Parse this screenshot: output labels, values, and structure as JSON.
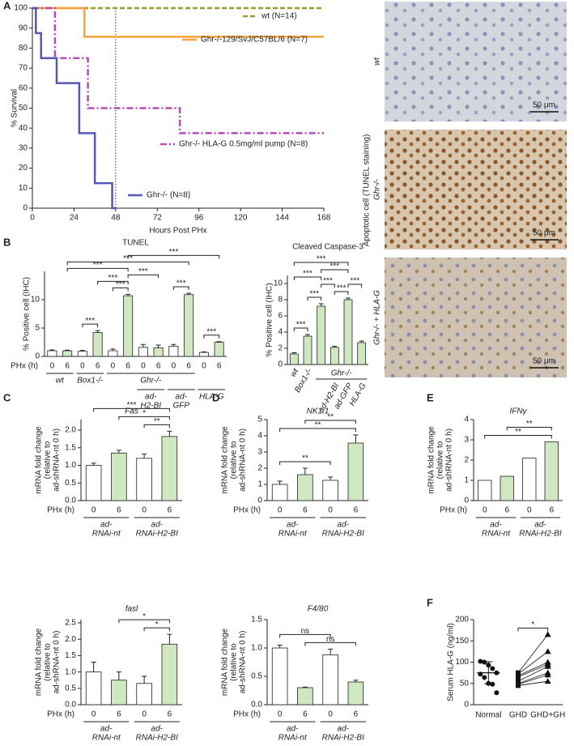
{
  "chart_data": [
    {
      "type": "survival",
      "panel": "A",
      "ylabel": [
        "% Survival"
      ],
      "xlabel": "Hours Post PHx",
      "xlim": [
        0,
        168
      ],
      "ylim": [
        0,
        100
      ],
      "xticks": [
        0,
        24,
        48,
        72,
        96,
        120,
        144,
        168
      ],
      "yticks": [
        0,
        10,
        20,
        30,
        40,
        50,
        60,
        70,
        80,
        90,
        100
      ],
      "vline": 48,
      "series": [
        {
          "name": "wt (N=14)",
          "color": "#a09a2c",
          "dash": "dashed",
          "x": [
            0,
            168
          ],
          "values": [
            100,
            100
          ]
        },
        {
          "name": "Ghr-/-129/SvJ/C57BL/6 (N=7)",
          "color": "#f5a33a",
          "dash": "solid",
          "x": [
            0,
            30,
            30,
            168
          ],
          "values": [
            100,
            100,
            85.7,
            85.7
          ]
        },
        {
          "name": "Ghr-/- HLA-G 0.5mg/ml pump (N=8)",
          "color": "#b84bb8",
          "dash": "dashdot",
          "x": [
            0,
            13,
            13,
            32,
            32,
            85,
            85,
            168
          ],
          "values": [
            100,
            100,
            75,
            75,
            50,
            50,
            37.5,
            37.5
          ]
        },
        {
          "name": "Ghr-/- (N=8)",
          "color": "#5558b5",
          "dash": "solid",
          "x": [
            0,
            2,
            2,
            5,
            5,
            14,
            14,
            27,
            27,
            36,
            36,
            46,
            46,
            48
          ],
          "values": [
            100,
            100,
            87.5,
            87.5,
            75,
            75,
            62.5,
            62.5,
            37.5,
            37.5,
            12.5,
            12.5,
            0,
            0
          ]
        }
      ]
    },
    {
      "type": "bar",
      "panel": "B",
      "title": "TUNEL",
      "ylabel": [
        "% Positive cell (IHC)"
      ],
      "xlabel": "PHx (h)",
      "categories": [
        "0",
        "6",
        "0",
        "6",
        "0",
        "6",
        "0",
        "6",
        "0",
        "6",
        "0",
        "6"
      ],
      "values": [
        1.0,
        1.0,
        0.9,
        4.2,
        1.0,
        10.7,
        1.6,
        1.5,
        1.8,
        10.9,
        0.7,
        2.5
      ],
      "errors": [
        0.15,
        0.1,
        0.15,
        0.35,
        0.3,
        0.25,
        0.5,
        0.5,
        0.3,
        0.25,
        0.1,
        0.1
      ],
      "colors": [
        "#ffffff",
        "#cfe8c2",
        "#ffffff",
        "#cfe8c2",
        "#ffffff",
        "#cfe8c2",
        "#ffffff",
        "#cfe8c2",
        "#ffffff",
        "#cfe8c2",
        "#ffffff",
        "#cfe8c2"
      ],
      "ylim": [
        0,
        15
      ],
      "yticks": [
        0,
        5,
        10
      ],
      "groups": [
        {
          "label": [
            "wt"
          ],
          "span": [
            0,
            1
          ]
        },
        {
          "label": [
            "Box1-/-"
          ],
          "span": [
            2,
            3
          ]
        },
        {
          "label": [
            "Ghr-/-"
          ],
          "span": [
            4,
            9
          ]
        }
      ],
      "subgroups": [
        {
          "label": [
            "ad-",
            "H2-BI"
          ],
          "span": [
            6,
            7
          ]
        },
        {
          "label": [
            "ad-",
            "GFP"
          ],
          "span": [
            8,
            9
          ]
        },
        {
          "label": [
            "HLA-G"
          ],
          "span": [
            10,
            11
          ]
        }
      ],
      "brackets": [
        {
          "span": [
            2,
            3
          ],
          "label": "***"
        },
        {
          "span": [
            10,
            11
          ],
          "label": "***"
        },
        {
          "span": [
            4,
            5
          ],
          "label": "***"
        },
        {
          "span": [
            8,
            9
          ],
          "label": "***"
        },
        {
          "span": [
            3,
            5
          ],
          "label": "***"
        },
        {
          "span": [
            5,
            7
          ],
          "label": "***"
        },
        {
          "span": [
            1,
            5
          ],
          "label": "***"
        },
        {
          "span": [
            1,
            9
          ],
          "label": "***"
        },
        {
          "span": [
            5,
            11
          ],
          "label": "***"
        }
      ]
    },
    {
      "type": "bar",
      "title": "Cleaved Caspase-3",
      "ylabel": [
        "% Positive cell (IHC)"
      ],
      "categories": [
        "wt",
        "Box1-/-",
        null,
        "ad-H2-BI",
        "ad-GFP",
        "HLA-G"
      ],
      "values": [
        1.3,
        3.5,
        7.2,
        2.1,
        8.0,
        2.7
      ],
      "errors": [
        0.15,
        0.2,
        0.3,
        0.15,
        0.2,
        0.2
      ],
      "color": "#cfe8c2",
      "ylim": [
        0,
        11
      ],
      "yticks": [
        0,
        2,
        4,
        6,
        8,
        10
      ],
      "groups": [
        {
          "label": [
            "Ghr-/-"
          ],
          "span": [
            2,
            5
          ]
        }
      ],
      "brackets": [
        {
          "span": [
            0,
            1
          ],
          "label": "***"
        },
        {
          "span": [
            1,
            2
          ],
          "label": "***"
        },
        {
          "span": [
            3,
            4
          ],
          "label": "***"
        },
        {
          "span": [
            2,
            3
          ],
          "label": "***"
        },
        {
          "span": [
            4,
            5
          ],
          "label": "***"
        },
        {
          "span": [
            0,
            2
          ],
          "label": "***"
        },
        {
          "span": [
            2,
            4
          ],
          "label": "***"
        },
        {
          "span": [
            0,
            4
          ],
          "label": "***"
        }
      ]
    },
    {
      "type": "bar",
      "panel": "C",
      "title": "Fas",
      "ylabel": [
        "mRNA fold change",
        "(relative to",
        "ad-shRNA-nt 0 h)"
      ],
      "xlabel": "PHx (h)",
      "categories": [
        "0",
        "6",
        "0",
        "6"
      ],
      "values": [
        1.0,
        1.35,
        1.2,
        1.82
      ],
      "errors": [
        0.06,
        0.08,
        0.12,
        0.15
      ],
      "colors": [
        "#ffffff",
        "#cfe8c2",
        "#ffffff",
        "#cfe8c2"
      ],
      "ylim": [
        0,
        2.3
      ],
      "yticks": [
        {
          "value": 0,
          "label": "0.0"
        },
        {
          "value": 0.5,
          "label": "0.5"
        },
        {
          "value": 1,
          "label": "1.0"
        },
        {
          "value": 1.5,
          "label": "1.5"
        },
        {
          "value": 2,
          "label": "2.0"
        }
      ],
      "groups": [
        {
          "label": [
            "ad-",
            "RNAi-nt"
          ],
          "span": [
            0,
            1
          ]
        },
        {
          "label": [
            "ad-",
            "RNAi-H2-BI"
          ],
          "span": [
            2,
            3
          ]
        }
      ],
      "brackets": [
        {
          "span": [
            2,
            3
          ],
          "label": "**"
        },
        {
          "span": [
            1,
            3
          ],
          "label": "*"
        },
        {
          "span": [
            0,
            3
          ],
          "label": "***"
        }
      ]
    },
    {
      "type": "bar",
      "title": "fasl",
      "ylabel": [
        "mRNA fold change",
        "(relative to",
        "ad-shRNA-nt 0 h)"
      ],
      "xlabel": "PHx (h)",
      "categories": [
        "0",
        "6",
        "0",
        "6"
      ],
      "values": [
        1.0,
        0.75,
        0.65,
        1.85
      ],
      "errors": [
        0.3,
        0.25,
        0.22,
        0.3
      ],
      "colors": [
        "#ffffff",
        "#cfe8c2",
        "#ffffff",
        "#cfe8c2"
      ],
      "ylim": [
        0,
        2.6
      ],
      "yticks": [
        {
          "value": 0,
          "label": "0.0"
        },
        {
          "value": 0.5,
          "label": "0.5"
        },
        {
          "value": 1,
          "label": "1.0"
        },
        {
          "value": 1.5,
          "label": "1.5"
        },
        {
          "value": 2,
          "label": "2.0"
        },
        {
          "value": 2.5,
          "label": "2.5"
        }
      ],
      "groups": [
        {
          "label": [
            "ad-",
            "RNAi-nt"
          ],
          "span": [
            0,
            1
          ]
        },
        {
          "label": [
            "ad-",
            "RNAi-H2-BI"
          ],
          "span": [
            2,
            3
          ]
        }
      ],
      "brackets": [
        {
          "span": [
            2,
            3
          ],
          "label": "*"
        },
        {
          "span": [
            1,
            3
          ],
          "label": "*"
        }
      ]
    },
    {
      "type": "bar",
      "panel": "D",
      "title": "NK1.1",
      "ylabel": [
        "mRNA fold change",
        "(relative to",
        "ad-shRNA-nt 0 h)"
      ],
      "xlabel": "PHx (h)",
      "categories": [
        "0",
        "6",
        "0",
        "6"
      ],
      "values": [
        1.0,
        1.6,
        1.25,
        3.55
      ],
      "errors": [
        0.2,
        0.4,
        0.2,
        0.5
      ],
      "colors": [
        "#ffffff",
        "#cfe8c2",
        "#ffffff",
        "#cfe8c2"
      ],
      "ylim": [
        0,
        5
      ],
      "yticks": [
        0,
        1,
        2,
        3,
        4,
        5
      ],
      "groups": [
        {
          "label": [
            "ad-",
            "RNAi-nt"
          ],
          "span": [
            0,
            1
          ]
        },
        {
          "label": [
            "ad-",
            "RNAi-H2-BI"
          ],
          "span": [
            2,
            3
          ]
        }
      ],
      "brackets": [
        {
          "span": [
            0,
            2
          ],
          "label": "**"
        },
        {
          "span": [
            0,
            3
          ],
          "label": "**"
        },
        {
          "span": [
            1,
            3
          ],
          "label": "**"
        }
      ]
    },
    {
      "type": "bar",
      "title": "F4/80",
      "ylabel": [
        "mRNA fold change",
        "(relative to",
        "ad-shRNA-nt 0 h)"
      ],
      "xlabel": "PHx (h)",
      "categories": [
        "0",
        "6",
        "0",
        "6"
      ],
      "values": [
        1.0,
        0.3,
        0.88,
        0.4
      ],
      "errors": [
        0.05,
        0.01,
        0.1,
        0.03
      ],
      "colors": [
        "#ffffff",
        "#cfe8c2",
        "#ffffff",
        "#cfe8c2"
      ],
      "ylim": [
        0,
        1.5
      ],
      "yticks": [
        {
          "value": 0,
          "label": "0.0"
        },
        {
          "value": 0.5,
          "label": "0.5"
        },
        {
          "value": 1,
          "label": "1.0"
        },
        {
          "value": 1.5,
          "label": "1.5"
        }
      ],
      "groups": [
        {
          "label": [
            "ad-",
            "RNAi-nt"
          ],
          "span": [
            0,
            1
          ]
        },
        {
          "label": [
            "ad-",
            "RNAi-H2-BI"
          ],
          "span": [
            2,
            3
          ]
        }
      ],
      "brackets": [
        {
          "span": [
            1,
            3
          ],
          "label": "ns"
        },
        {
          "span": [
            0,
            2
          ],
          "label": "ns"
        }
      ]
    },
    {
      "type": "bar",
      "panel": "E",
      "title": "IFNγ",
      "ylabel": [
        "mRNA fold change",
        "(relative to",
        "ad-shRNA-nt 0 h)"
      ],
      "xlabel": "PHx (h)",
      "categories": [
        "0",
        "6",
        "0",
        "6"
      ],
      "values": [
        1.0,
        1.2,
        2.1,
        2.9
      ],
      "colors": [
        "#ffffff",
        "#cfe8c2",
        "#ffffff",
        "#cfe8c2"
      ],
      "ylim": [
        0,
        4
      ],
      "yticks": [
        0,
        1,
        2,
        3,
        4
      ],
      "groups": [
        {
          "label": [
            "ad-",
            "RNAi-nt"
          ],
          "span": [
            0,
            1
          ]
        },
        {
          "label": [
            "ad-",
            "RNAi-H2-BI"
          ],
          "span": [
            2,
            3
          ]
        }
      ],
      "brackets": [
        {
          "span": [
            0,
            3
          ],
          "label": "**"
        },
        {
          "span": [
            1,
            3
          ],
          "label": "**"
        }
      ]
    },
    {
      "type": "dot",
      "panel": "F",
      "ylabel": [
        "Serum HLA-G (ng/ml)"
      ],
      "categories": [
        "Normal",
        "GHD",
        "GHD+GH"
      ],
      "values": [
        [
          102,
          100,
          93,
          85,
          75,
          72,
          64,
          50,
          48,
          28
        ],
        [
          75,
          72,
          68,
          65,
          55,
          50,
          48,
          45
        ],
        [
          165,
          125,
          100,
          95,
          90,
          75,
          70,
          55
        ]
      ],
      "mean": 75,
      "sd": 26,
      "paired": [
        1,
        2
      ],
      "ylim": [
        0,
        200
      ],
      "yticks": [
        0,
        50,
        100,
        150,
        200
      ],
      "brackets": [
        {
          "span": [
            1,
            2
          ],
          "label": "*"
        }
      ]
    }
  ],
  "micrographs": {
    "ylabel": "Apoptotic cell (TUNEL staining)",
    "panels": [
      {
        "label": "wt",
        "scale": "50 μm"
      },
      {
        "label": "Ghr-/-",
        "scale": "50 μm"
      },
      {
        "label": "Ghr-/- + HLA-G",
        "scale": "50 μm"
      }
    ]
  }
}
